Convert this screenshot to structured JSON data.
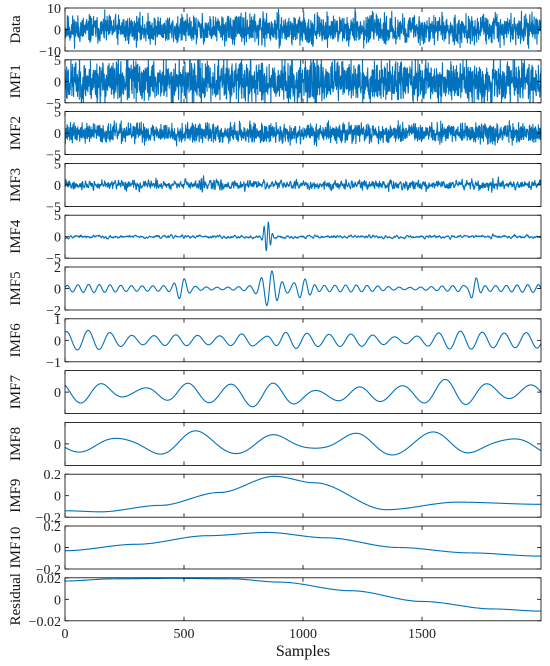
{
  "chart_data": {
    "type": "line",
    "xlabel": "Samples",
    "xlim": [
      0,
      2000
    ],
    "xticks": [
      0,
      500,
      1000,
      1500
    ],
    "line_color": "#0072BD",
    "grid": false,
    "panels": [
      {
        "label": "Data",
        "ylim": [
          -10,
          10
        ],
        "yticks": [
          -10,
          0,
          10
        ],
        "ytick_labels": [
          "−10",
          "0",
          "10"
        ],
        "description": "Noisy raw signal, broadband, amplitude about ±6, spikes near 830 and 1220",
        "features": [
          {
            "kind": "noise",
            "amp": 3.2,
            "seed": 11
          },
          {
            "kind": "burst",
            "center": 830,
            "width": 20,
            "amp": 5.0,
            "freq": 0.08
          },
          {
            "kind": "spike",
            "at": 1220,
            "amp": 8.5
          },
          {
            "kind": "spike",
            "at": 550,
            "amp": 6.0
          },
          {
            "kind": "spike",
            "at": 1890,
            "amp": 6.5
          }
        ]
      },
      {
        "label": "IMF1",
        "ylim": [
          -5,
          5
        ],
        "yticks": [
          -5,
          0,
          5
        ],
        "ytick_labels": [
          "−5",
          "0",
          "5"
        ],
        "description": "Highest-frequency mode, dense noise about ±4",
        "features": [
          {
            "kind": "noise",
            "amp": 2.4,
            "seed": 23
          },
          {
            "kind": "spike",
            "at": 1220,
            "amp": 4.5
          }
        ]
      },
      {
        "label": "IMF2",
        "ylim": [
          -5,
          5
        ],
        "yticks": [
          -5,
          0,
          5
        ],
        "ytick_labels": [
          "−5",
          "0",
          "5"
        ],
        "description": "High-frequency mode, about ±2 with spike near 1220",
        "features": [
          {
            "kind": "noise",
            "amp": 1.1,
            "seed": 37
          },
          {
            "kind": "spike",
            "at": 1220,
            "amp": 3.8
          },
          {
            "kind": "spike",
            "at": 290,
            "amp": 2.4
          }
        ]
      },
      {
        "label": "IMF3",
        "ylim": [
          -5,
          5
        ],
        "yticks": [
          -5,
          0,
          5
        ],
        "ytick_labels": [
          "−5",
          "0",
          "5"
        ],
        "description": "Mid-high frequency, about ±1.5",
        "features": [
          {
            "kind": "noise",
            "amp": 0.75,
            "seed": 41,
            "smooth": 2
          },
          {
            "kind": "burst",
            "center": 580,
            "width": 15,
            "amp": 1.4,
            "freq": 0.12
          }
        ]
      },
      {
        "label": "IMF4",
        "ylim": [
          -5,
          5
        ],
        "yticks": [
          -5,
          0,
          5
        ],
        "ytick_labels": [
          "−5",
          "0",
          "5"
        ],
        "description": "Small oscillation with strong burst around 850 (amplitude ~3.5)",
        "features": [
          {
            "kind": "noise",
            "amp": 0.3,
            "seed": 53,
            "smooth": 4
          },
          {
            "kind": "burst",
            "center": 850,
            "width": 18,
            "amp": 3.5,
            "freq": 0.055
          }
        ]
      },
      {
        "label": "IMF5",
        "ylim": [
          -2,
          2
        ],
        "yticks": [
          -2,
          0,
          2
        ],
        "ytick_labels": [
          "−2",
          "0",
          "2"
        ],
        "description": "Oscillation period ~45 samples with bursts near 480, 850, 1000, 1720",
        "features": [
          {
            "kind": "wave",
            "period": 45,
            "amp": 0.25,
            "phase": 0.3
          },
          {
            "kind": "burst",
            "center": 490,
            "width": 30,
            "amp": 0.8,
            "freq": 0.022
          },
          {
            "kind": "burst",
            "center": 860,
            "width": 45,
            "amp": 1.5,
            "freq": 0.022
          },
          {
            "kind": "burst",
            "center": 1000,
            "width": 45,
            "amp": 0.9,
            "freq": 0.022
          },
          {
            "kind": "burst",
            "center": 1720,
            "width": 25,
            "amp": 1.1,
            "freq": 0.022
          }
        ]
      },
      {
        "label": "IMF6",
        "ylim": [
          -1,
          1
        ],
        "yticks": [
          -1,
          0,
          1
        ],
        "ytick_labels": [
          "−1",
          "0",
          "1"
        ],
        "description": "Oscillation period ~90 samples, amplitude ~0.4, larger near 850",
        "features": [
          {
            "kind": "wave",
            "period": 92,
            "amp": 0.3,
            "phase": 1.2
          },
          {
            "kind": "burst",
            "center": 850,
            "width": 60,
            "amp": 0.4,
            "freq": 0.0109
          }
        ]
      },
      {
        "label": "IMF7",
        "ylim": [
          -0.5,
          0.5
        ],
        "yticks": [
          0
        ],
        "ytick_labels": [
          "0"
        ],
        "description": "Oscillation period ~180 samples, amplitude ~0.25",
        "features": [
          {
            "kind": "wave",
            "period": 180,
            "amp": 0.2,
            "phase": 2.4
          },
          {
            "kind": "burst",
            "center": 1000,
            "width": 400,
            "amp": -0.08,
            "freq": 0
          }
        ]
      },
      {
        "label": "IMF8",
        "ylim": [
          -0.35,
          0.35
        ],
        "yticks": [
          0
        ],
        "ytick_labels": [
          "0"
        ],
        "description": "Oscillation period ~320 samples, amplitude ~0.15",
        "features": [
          {
            "kind": "wave",
            "period": 330,
            "amp": 0.15,
            "phase": 3.6
          }
        ]
      },
      {
        "label": "IMF9",
        "ylim": [
          -0.2,
          0.2
        ],
        "yticks": [
          -0.2,
          0,
          0.2
        ],
        "ytick_labels": [
          "−0.2",
          "0",
          "0.2"
        ],
        "description": "Slow component rising to ~0.18 at 880, dip ~-0.13 at 1350, ~-0.06 at 1650",
        "points": [
          [
            0,
            -0.14
          ],
          [
            150,
            -0.15
          ],
          [
            400,
            -0.09
          ],
          [
            650,
            0.03
          ],
          [
            880,
            0.18
          ],
          [
            1050,
            0.12
          ],
          [
            1350,
            -0.13
          ],
          [
            1650,
            -0.06
          ],
          [
            2000,
            -0.08
          ]
        ]
      },
      {
        "label": "IMF10",
        "ylim": [
          -0.2,
          0.2
        ],
        "yticks": [
          -0.2,
          0,
          0.2
        ],
        "ytick_labels": [
          "−0.2",
          "0",
          "0.2"
        ],
        "description": "Very slow hump peaking ~0.14 at 850, -0.08 at end",
        "points": [
          [
            0,
            -0.03
          ],
          [
            300,
            0.03
          ],
          [
            600,
            0.11
          ],
          [
            850,
            0.14
          ],
          [
            1100,
            0.09
          ],
          [
            1400,
            0.0
          ],
          [
            1700,
            -0.05
          ],
          [
            2000,
            -0.08
          ]
        ]
      },
      {
        "label": "Residual",
        "ylim": [
          -0.02,
          0.02
        ],
        "yticks": [
          -0.02,
          0,
          0.02
        ],
        "ytick_labels": [
          "−0.02",
          "0",
          "0.02"
        ],
        "description": "Monotone trend: ~0.018 at start, peak ~0.02 near 450, down to -0.011 at end",
        "points": [
          [
            0,
            0.017
          ],
          [
            200,
            0.019
          ],
          [
            450,
            0.0195
          ],
          [
            700,
            0.019
          ],
          [
            900,
            0.016
          ],
          [
            1200,
            0.008
          ],
          [
            1500,
            -0.002
          ],
          [
            1800,
            -0.009
          ],
          [
            2000,
            -0.011
          ]
        ]
      }
    ]
  }
}
